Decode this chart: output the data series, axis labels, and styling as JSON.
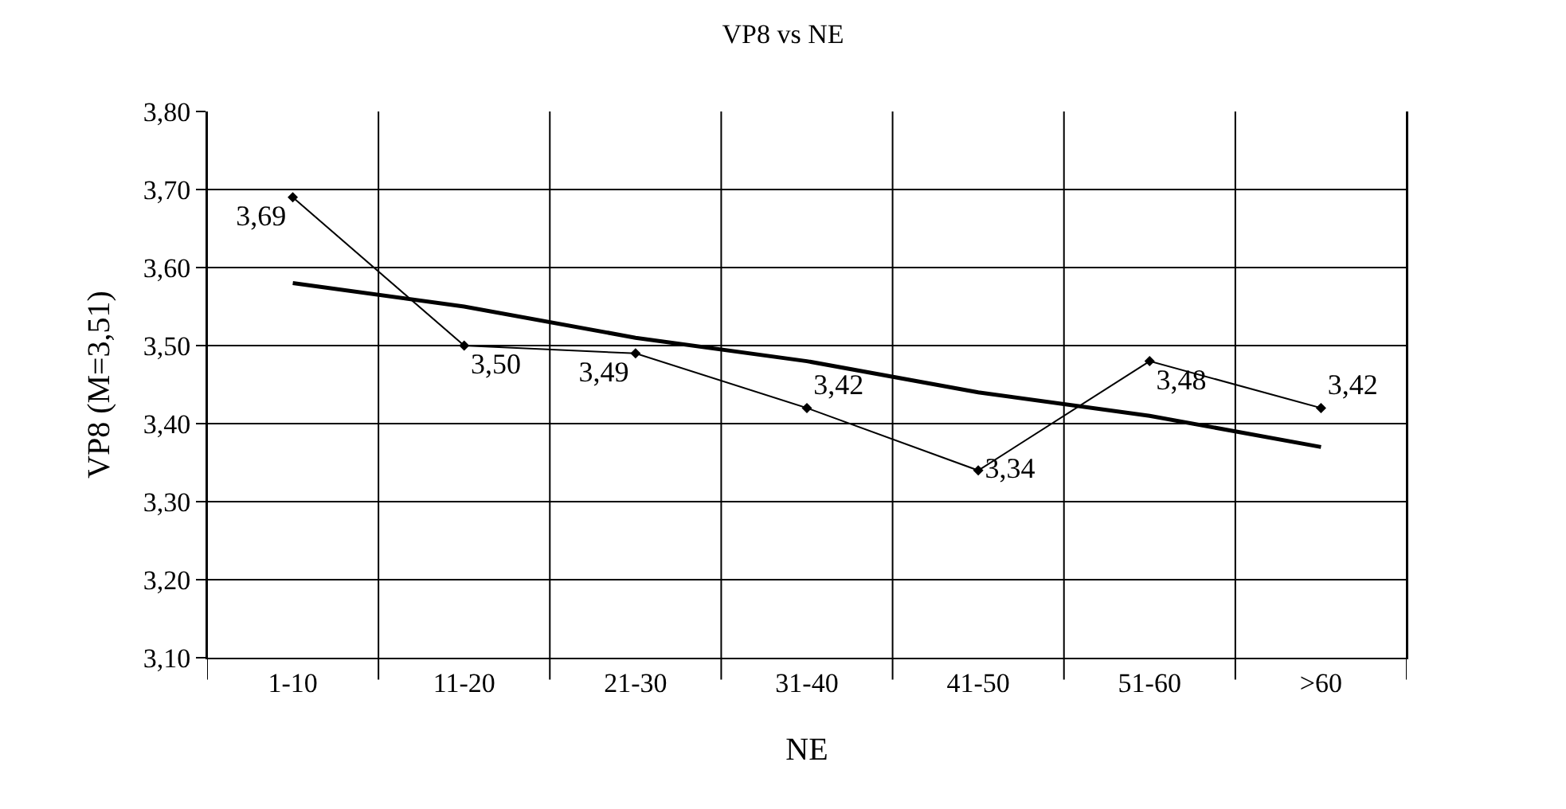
{
  "chart_data": {
    "type": "line",
    "title": "VP8 vs NE",
    "xlabel": "NE",
    "ylabel": "VP8 (M=3,51)",
    "categories": [
      "1-10",
      "11-20",
      "21-30",
      "31-40",
      "41-50",
      "51-60",
      ">60"
    ],
    "series": [
      {
        "type": "line",
        "color": "#000000",
        "marker": "diamond",
        "values": [
          3.69,
          3.5,
          3.49,
          3.42,
          3.34,
          3.48,
          3.42
        ],
        "value_labels": [
          "3,69",
          "3,50",
          "3,49",
          "3,42",
          "3,34",
          "3,48",
          "3,42"
        ]
      },
      {
        "type": "line",
        "color": "#000000",
        "marker": "none",
        "values": [
          3.58,
          3.55,
          3.51,
          3.48,
          3.44,
          3.41,
          3.37
        ]
      }
    ],
    "ylim": [
      3.1,
      3.8
    ],
    "yticks": [
      {
        "value": 3.1,
        "label": "3,10"
      },
      {
        "value": 3.2,
        "label": "3,20"
      },
      {
        "value": 3.3,
        "label": "3,30"
      },
      {
        "value": 3.4,
        "label": "3,40"
      },
      {
        "value": 3.5,
        "label": "3,50"
      },
      {
        "value": 3.6,
        "label": "3,60"
      },
      {
        "value": 3.7,
        "label": "3,70"
      },
      {
        "value": 3.8,
        "label": "3,80"
      }
    ],
    "grid": true,
    "legend": false
  }
}
